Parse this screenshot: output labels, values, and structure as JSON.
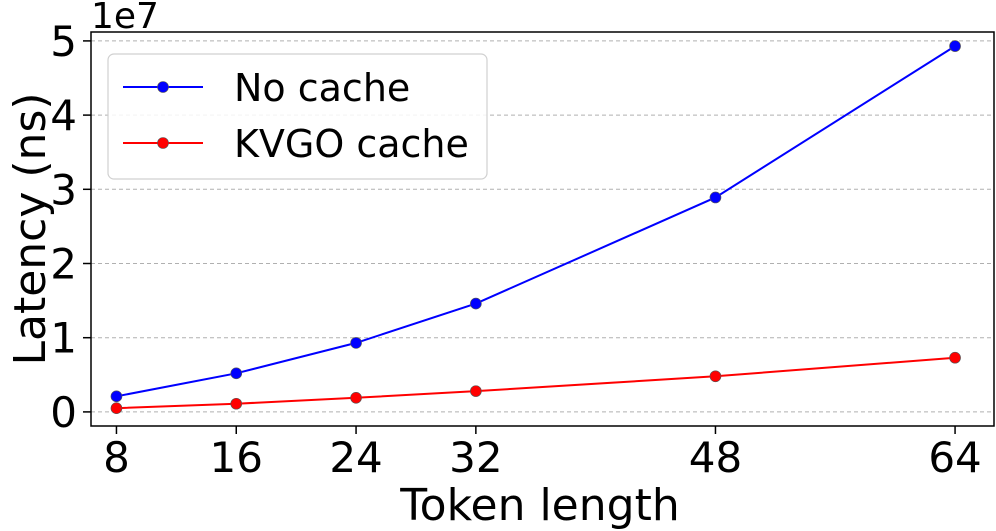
{
  "chart_data": {
    "type": "line",
    "x": [
      8,
      16,
      24,
      32,
      48,
      64
    ],
    "x_ticks": [
      "8",
      "16",
      "24",
      "32",
      "48",
      "64"
    ],
    "xlim": [
      6.3,
      66.6
    ],
    "xlabel": "Token length",
    "ylabel": "Latency (ns)",
    "y_multiplier": "1e7",
    "y_ticks": [
      "0",
      "1",
      "2",
      "3",
      "4",
      "5"
    ],
    "ylim": [
      -0.19,
      5.12
    ],
    "grid": "y dashed",
    "legend_position": "top-left",
    "series": [
      {
        "name": "No cache",
        "color": "#0000ff",
        "values": [
          0.21,
          0.52,
          0.93,
          1.46,
          2.89,
          4.93
        ]
      },
      {
        "name": "KVGO cache",
        "color": "#ff0000",
        "values": [
          0.05,
          0.11,
          0.19,
          0.28,
          0.48,
          0.73
        ]
      }
    ]
  }
}
